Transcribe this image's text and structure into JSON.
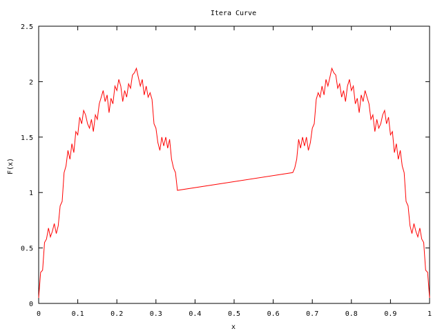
{
  "chart_data": {
    "type": "line",
    "title": "Itera Curve",
    "xlabel": "x",
    "ylabel": "F(x)",
    "xlim": [
      0,
      1
    ],
    "ylim": [
      0,
      2.5
    ],
    "grid": false,
    "legend": "none",
    "x_ticks": [
      "0",
      "0.1",
      "0.2",
      "0.3",
      "0.4",
      "0.5",
      "0.6",
      "0.7",
      "0.8",
      "0.9",
      "1"
    ],
    "y_ticks": [
      "0",
      "0.5",
      "1",
      "1.5",
      "2",
      "2.5"
    ],
    "series": [
      {
        "color": "#ff0000",
        "x": [
          0.0,
          0.005,
          0.01,
          0.015,
          0.02,
          0.025,
          0.03,
          0.035,
          0.04,
          0.045,
          0.05,
          0.055,
          0.06,
          0.065,
          0.07,
          0.075,
          0.08,
          0.085,
          0.09,
          0.095,
          0.1,
          0.105,
          0.11,
          0.115,
          0.12,
          0.125,
          0.13,
          0.135,
          0.14,
          0.145,
          0.15,
          0.155,
          0.16,
          0.165,
          0.17,
          0.175,
          0.18,
          0.185,
          0.19,
          0.195,
          0.2,
          0.205,
          0.21,
          0.215,
          0.22,
          0.225,
          0.23,
          0.235,
          0.24,
          0.245,
          0.25,
          0.255,
          0.26,
          0.265,
          0.27,
          0.275,
          0.28,
          0.285,
          0.29,
          0.295,
          0.3,
          0.305,
          0.31,
          0.315,
          0.32,
          0.325,
          0.33,
          0.335,
          0.34,
          0.345,
          0.35,
          0.355,
          0.36,
          0.365,
          0.37,
          0.375,
          0.38,
          0.385,
          0.39,
          0.395,
          0.4,
          0.405,
          0.41,
          0.415,
          0.42,
          0.425,
          0.43,
          0.435,
          0.44,
          0.445,
          0.45,
          0.455,
          0.46,
          0.465,
          0.47,
          0.475,
          0.48,
          0.485,
          0.49,
          0.495,
          0.5
        ],
        "y_first_half": [
          0.05,
          0.28,
          0.3,
          0.55,
          0.58,
          0.68,
          0.6,
          0.65,
          0.72,
          0.63,
          0.7,
          0.88,
          0.92,
          1.18,
          1.24,
          1.38,
          1.3,
          1.44,
          1.36,
          1.55,
          1.52,
          1.68,
          1.62,
          1.74,
          1.7,
          1.62,
          1.58,
          1.66,
          1.55,
          1.7,
          1.66,
          1.8,
          1.86,
          1.92,
          1.82,
          1.88,
          1.72,
          1.85,
          1.8,
          1.96,
          1.92,
          2.02,
          1.96,
          1.82,
          1.92,
          1.86,
          1.98,
          1.94,
          2.06,
          2.08,
          2.12,
          2.04,
          1.96,
          2.02,
          1.88,
          1.96,
          1.86,
          1.9,
          1.84,
          1.62,
          1.58,
          1.45,
          1.38,
          1.5,
          1.42,
          1.5,
          1.4,
          1.48,
          1.3,
          1.22,
          1.18,
          1.02
        ]
      }
    ]
  }
}
